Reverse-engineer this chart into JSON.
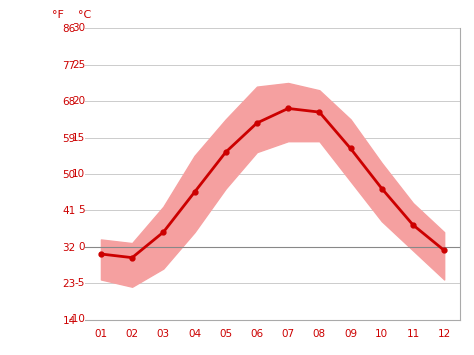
{
  "months": [
    1,
    2,
    3,
    4,
    5,
    6,
    7,
    8,
    9,
    10,
    11,
    12
  ],
  "month_labels": [
    "01",
    "02",
    "03",
    "04",
    "05",
    "06",
    "07",
    "08",
    "09",
    "10",
    "11",
    "12"
  ],
  "avg_temp": [
    -1.0,
    -1.5,
    2.0,
    7.5,
    13.0,
    17.0,
    19.0,
    18.5,
    13.5,
    8.0,
    3.0,
    -0.5
  ],
  "temp_max": [
    1.0,
    0.5,
    5.5,
    12.5,
    17.5,
    22.0,
    22.5,
    21.5,
    17.5,
    11.5,
    6.0,
    2.0
  ],
  "temp_min": [
    -4.5,
    -5.5,
    -3.0,
    2.0,
    8.0,
    13.0,
    14.5,
    14.5,
    9.0,
    3.5,
    -0.5,
    -4.5
  ],
  "line_color": "#cc0000",
  "band_color": "#f5a0a0",
  "zero_line_color": "#888888",
  "grid_color": "#cccccc",
  "text_color": "#cc0000",
  "bg_color": "#ffffff",
  "spine_color": "#aaaaaa",
  "ylabel_F": "°F",
  "ylabel_C": "°C",
  "yticks_C": [
    -10,
    -5,
    0,
    5,
    10,
    15,
    20,
    25,
    30
  ],
  "yticks_F": [
    14,
    23,
    32,
    41,
    50,
    59,
    68,
    77,
    86
  ],
  "ylim": [
    -10,
    30
  ],
  "xlim_left": 0.5,
  "xlim_right": 12.5,
  "figsize": [
    4.74,
    3.55
  ],
  "dpi": 100
}
